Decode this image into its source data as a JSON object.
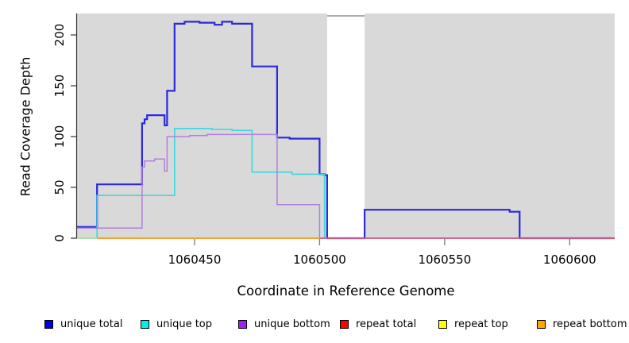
{
  "chart_data": {
    "type": "line",
    "step": "after",
    "title": "",
    "xlabel": "Coordinate in Reference Genome",
    "ylabel": "Read Coverage Depth",
    "xlim": [
      1060403,
      1060618
    ],
    "ylim": [
      0,
      221
    ],
    "x_ticks": [
      1060450,
      1060500,
      1060550,
      1060600
    ],
    "x_tick_labels": [
      "1060450",
      "1060500",
      "1060550",
      "1060600"
    ],
    "y_ticks": [
      0,
      50,
      100,
      150,
      200
    ],
    "y_tick_labels": [
      "0",
      "50",
      "100",
      "150",
      "200"
    ],
    "grid": false,
    "plot_background": "#d9d9d9",
    "gap_region": {
      "x0": 1060503,
      "x1": 1060518,
      "fill": "#ffffff",
      "top_border_color": "#8f8f8f"
    },
    "axis_color": "#333333",
    "x_tick_color": "#7a7a7a",
    "legend_position": "bottom",
    "legend": [
      {
        "label": "unique total",
        "color": "#0000ee"
      },
      {
        "label": "unique top",
        "color": "#00eeee"
      },
      {
        "label": "unique bottom",
        "color": "#a020f0"
      },
      {
        "label": "repeat total",
        "color": "#ff0000"
      },
      {
        "label": "repeat top",
        "color": "#ffff00"
      },
      {
        "label": "repeat bottom",
        "color": "#ffa500"
      }
    ],
    "series": [
      {
        "name": "unique total",
        "color": "#2929dd",
        "width": 2.2,
        "points": [
          [
            1060403,
            11
          ],
          [
            1060411,
            53
          ],
          [
            1060429,
            113
          ],
          [
            1060430,
            117
          ],
          [
            1060431,
            121
          ],
          [
            1060438,
            111
          ],
          [
            1060439,
            145
          ],
          [
            1060442,
            211
          ],
          [
            1060446,
            213
          ],
          [
            1060452,
            212
          ],
          [
            1060458,
            210
          ],
          [
            1060461,
            213
          ],
          [
            1060465,
            211
          ],
          [
            1060473,
            169
          ],
          [
            1060483,
            99
          ],
          [
            1060488,
            98
          ],
          [
            1060500,
            63
          ],
          [
            1060502,
            62
          ],
          [
            1060503,
            0
          ],
          [
            1060518,
            28
          ],
          [
            1060576,
            26
          ],
          [
            1060580,
            0
          ],
          [
            1060618,
            0
          ]
        ]
      },
      {
        "name": "unique top",
        "color": "#3cd7de",
        "width": 1.6,
        "points": [
          [
            1060403,
            0
          ],
          [
            1060411,
            42
          ],
          [
            1060442,
            108
          ],
          [
            1060450,
            108
          ],
          [
            1060457,
            107
          ],
          [
            1060465,
            106
          ],
          [
            1060473,
            65
          ],
          [
            1060489,
            63
          ],
          [
            1060502,
            0
          ],
          [
            1060618,
            0
          ]
        ]
      },
      {
        "name": "unique bottom",
        "color": "#b27fdd",
        "width": 1.5,
        "points": [
          [
            1060403,
            10
          ],
          [
            1060429,
            70
          ],
          [
            1060430,
            76
          ],
          [
            1060434,
            78
          ],
          [
            1060438,
            66
          ],
          [
            1060439,
            100
          ],
          [
            1060448,
            101
          ],
          [
            1060455,
            102
          ],
          [
            1060483,
            33
          ],
          [
            1060500,
            0
          ],
          [
            1060618,
            0
          ]
        ]
      },
      {
        "name": "repeat total",
        "color": "#e34d66",
        "width": 1.4,
        "points": [
          [
            1060411,
            0
          ],
          [
            1060618,
            0
          ]
        ]
      },
      {
        "name": "repeat top",
        "color": "#b9e387",
        "width": 1.3,
        "points": [
          [
            1060403,
            0
          ],
          [
            1060500,
            0
          ]
        ]
      },
      {
        "name": "repeat bottom",
        "color": "#ff9e1b",
        "width": 1.8,
        "points": [
          [
            1060411,
            0
          ],
          [
            1060500,
            0
          ]
        ]
      }
    ]
  }
}
